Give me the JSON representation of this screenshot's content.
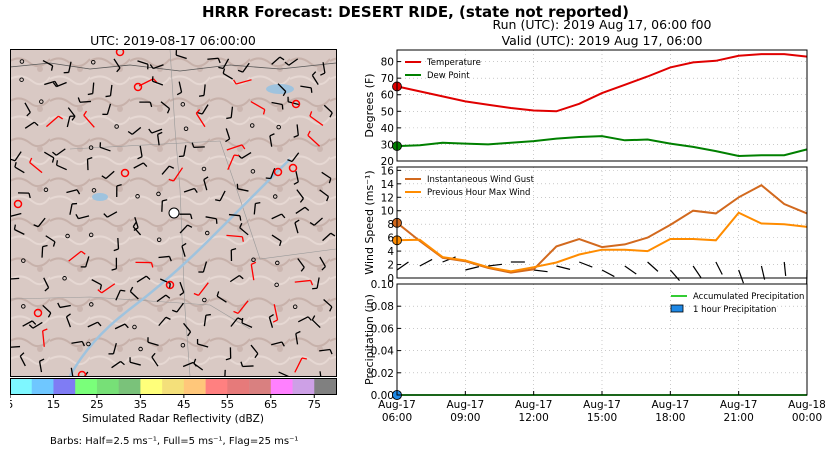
{
  "title": "HRRR Forecast: DESERT RIDE, (state not reported)",
  "run_line": "Run (UTC): 2019 Aug 17, 06:00 f00",
  "valid_line": "Valid (UTC): 2019 Aug 17, 06:00",
  "map": {
    "title": "UTC: 2019-08-17 06:00:00",
    "colorbar_ticks": [
      "5",
      "15",
      "25",
      "35",
      "45",
      "55",
      "65",
      "75"
    ],
    "colorbar_colors": [
      "#7ef7ff",
      "#6fc7ff",
      "#7f7cf4",
      "#7aff7a",
      "#77e077",
      "#7ac27a",
      "#ffff7a",
      "#f4e07a",
      "#ffc77a",
      "#ff8080",
      "#e67a7a",
      "#d98080",
      "#ff80ff",
      "#cda0e6",
      "#808080"
    ],
    "colorbar_label": "Simulated Radar Reflectivity (dBZ)",
    "barbs_note": "Barbs: Half=2.5 ms⁻¹, Full=5 ms⁻¹, Flag=25 ms⁻¹"
  },
  "chart_data": [
    {
      "type": "line",
      "ylabel": "Degrees (F)",
      "ylim": [
        20,
        87
      ],
      "yticks": [
        20,
        30,
        40,
        50,
        60,
        70,
        80
      ],
      "grid": true,
      "legend_position": "top-left",
      "x": [
        0,
        1,
        2,
        3,
        4,
        5,
        6,
        7,
        8,
        9,
        10,
        11,
        12,
        13,
        14,
        15,
        16,
        17,
        18
      ],
      "series": [
        {
          "name": "Temperature",
          "color": "#e00000",
          "values": [
            65,
            62,
            59,
            56,
            54,
            52,
            50.5,
            50,
            54.5,
            61,
            66,
            71,
            76.5,
            79.5,
            80.5,
            83.5,
            84.5,
            84.5,
            83
          ]
        },
        {
          "name": "Dew Point",
          "color": "#008000",
          "values": [
            29,
            29.5,
            31,
            30.5,
            30,
            31,
            32,
            33.5,
            34.5,
            35,
            32.5,
            33,
            30.5,
            28.5,
            26,
            23,
            23.5,
            23.5,
            27
          ]
        }
      ]
    },
    {
      "type": "line",
      "ylabel": "Wind Speed (ms⁻¹)",
      "ylim": [
        0,
        16.5
      ],
      "yticks": [
        0,
        2,
        4,
        6,
        8,
        10,
        12,
        14,
        16
      ],
      "grid": true,
      "legend_position": "top-left",
      "x": [
        0,
        1,
        2,
        3,
        4,
        5,
        6,
        7,
        8,
        9,
        10,
        11,
        12,
        13,
        14,
        15,
        16,
        17,
        18
      ],
      "series": [
        {
          "name": "Instantaneous Wind Gust",
          "color": "#d2691e",
          "values": [
            8.2,
            5.5,
            3.0,
            2.5,
            1.5,
            0.8,
            1.3,
            4.7,
            5.8,
            4.6,
            5.0,
            6.0,
            7.9,
            10.0,
            9.6,
            12.0,
            13.8,
            11.0,
            9.6
          ]
        },
        {
          "name": "Previous Hour Max Wind",
          "color": "#ff8c00",
          "values": [
            5.6,
            5.7,
            3.1,
            2.6,
            1.6,
            1.0,
            1.6,
            2.3,
            3.5,
            4.2,
            4.2,
            4.0,
            5.8,
            5.8,
            5.6,
            9.7,
            8.1,
            8.0,
            7.6
          ]
        }
      ]
    },
    {
      "type": "area",
      "ylabel": "Precipitation (in)",
      "ylim": [
        0,
        0.1
      ],
      "yticks": [
        "0.00",
        "0.02",
        "0.04",
        "0.06",
        "0.08",
        "0.10"
      ],
      "grid": true,
      "legend_position": "top-right",
      "x_tick_labels": [
        [
          "Aug-17",
          "06:00"
        ],
        [
          "Aug-17",
          "09:00"
        ],
        [
          "Aug-17",
          "12:00"
        ],
        [
          "Aug-17",
          "15:00"
        ],
        [
          "Aug-17",
          "18:00"
        ],
        [
          "Aug-17",
          "21:00"
        ],
        [
          "Aug-18",
          "00:00"
        ]
      ],
      "x": [
        0,
        1,
        2,
        3,
        4,
        5,
        6,
        7,
        8,
        9,
        10,
        11,
        12,
        13,
        14,
        15,
        16,
        17,
        18
      ],
      "series": [
        {
          "name": "Accumulated Precipitation",
          "color": "#33cc33",
          "values": [
            0,
            0,
            0,
            0,
            0,
            0,
            0,
            0,
            0,
            0,
            0,
            0,
            0,
            0,
            0,
            0,
            0,
            0,
            0
          ]
        },
        {
          "name": "1 hour Precipitation",
          "color": "#1e88e5",
          "values": [
            0,
            0,
            0,
            0,
            0,
            0,
            0,
            0,
            0,
            0,
            0,
            0,
            0,
            0,
            0,
            0,
            0,
            0,
            0
          ]
        }
      ]
    }
  ]
}
